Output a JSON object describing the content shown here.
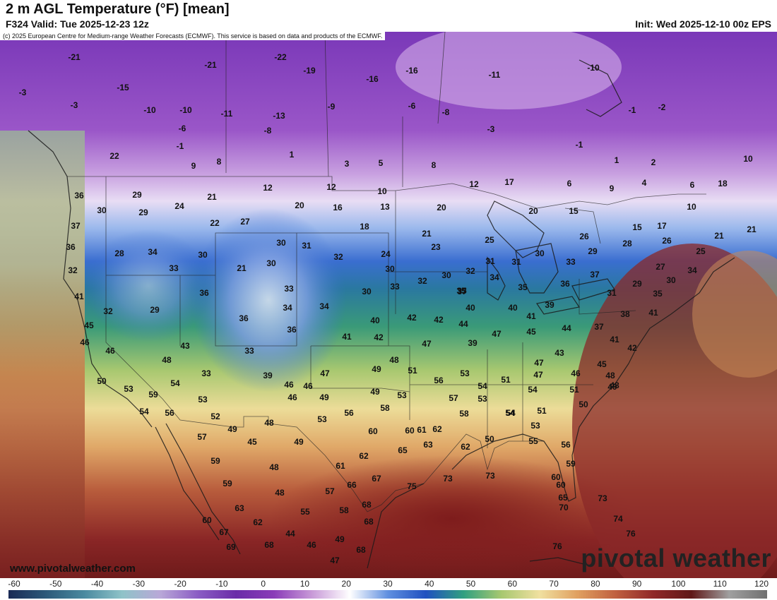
{
  "header": {
    "title": "2 m AGL Temperature (°F) [mean]",
    "valid": "F324 Valid: Tue 2025-12-23 12z",
    "init": "Init: Wed 2025-12-10 00z EPS",
    "credit": "(c) 2025 European Centre for Medium-range Weather Forecasts (ECMWF). This service is based on data and products of the ECMWF."
  },
  "footer": {
    "website": "www.pivotalweather.com",
    "brand": "pivotal weather"
  },
  "colorbar": {
    "ticks": [
      "-60",
      "-50",
      "-40",
      "-30",
      "-20",
      "-10",
      "0",
      "10",
      "20",
      "30",
      "40",
      "50",
      "60",
      "70",
      "80",
      "90",
      "100",
      "110",
      "120"
    ],
    "stops": [
      "#1a2a55",
      "#2c5a7a",
      "#4a8aa0",
      "#8fc3c8",
      "#b9a8d8",
      "#8a5cc4",
      "#6a2ca8",
      "#8a3cb8",
      "#c89ad8",
      "#ffffff",
      "#6090e0",
      "#2050c0",
      "#30a080",
      "#a8c870",
      "#f0e0a0",
      "#e0a060",
      "#c06040",
      "#902828",
      "#601818",
      "#a0a0a0",
      "#707070"
    ]
  },
  "map_labels": [
    {
      "t": "-21",
      "v": -21
    },
    {
      "t": "-22",
      "v": -22
    },
    {
      "t": "-21",
      "v": -21
    },
    {
      "t": "-19",
      "v": -19
    },
    {
      "t": "-16",
      "v": -16
    },
    {
      "t": "-16",
      "v": -16
    },
    {
      "t": "-11",
      "v": -11
    },
    {
      "t": "-10",
      "v": -10
    },
    {
      "t": "-15",
      "v": -15
    },
    {
      "t": "-3",
      "v": -3
    },
    {
      "t": "-3",
      "v": -3
    },
    {
      "t": "-10",
      "v": -10
    },
    {
      "t": "-10",
      "v": -10
    },
    {
      "t": "-11",
      "v": -11
    },
    {
      "t": "-13",
      "v": -13
    },
    {
      "t": "-9",
      "v": -9
    },
    {
      "t": "-6",
      "v": -6
    },
    {
      "t": "-8",
      "v": -8
    },
    {
      "t": "-1",
      "v": -1
    },
    {
      "t": "-2",
      "v": -2
    },
    {
      "t": "-6",
      "v": -6
    },
    {
      "t": "-8",
      "v": -8
    },
    {
      "t": "-3",
      "v": -3
    },
    {
      "t": "-1",
      "v": -1
    },
    {
      "t": "-1",
      "v": -1
    },
    {
      "t": "1",
      "v": 1
    },
    {
      "t": "1",
      "v": 1
    },
    {
      "t": "2",
      "v": 2
    },
    {
      "t": "22",
      "v": 22
    },
    {
      "t": "9",
      "v": 9
    },
    {
      "t": "8",
      "v": 8
    },
    {
      "t": "3",
      "v": 3
    },
    {
      "t": "5",
      "v": 5
    },
    {
      "t": "8",
      "v": 8
    },
    {
      "t": "10",
      "v": 10
    },
    {
      "t": "12",
      "v": 12
    },
    {
      "t": "12",
      "v": 12
    },
    {
      "t": "10",
      "v": 10
    },
    {
      "t": "12",
      "v": 12
    },
    {
      "t": "17",
      "v": 17
    },
    {
      "t": "6",
      "v": 6
    },
    {
      "t": "9",
      "v": 9
    },
    {
      "t": "4",
      "v": 4
    },
    {
      "t": "6",
      "v": 6
    },
    {
      "t": "18",
      "v": 18
    },
    {
      "t": "36",
      "v": 36
    },
    {
      "t": "29",
      "v": 29
    },
    {
      "t": "21",
      "v": 21
    },
    {
      "t": "24",
      "v": 24
    },
    {
      "t": "20",
      "v": 20
    },
    {
      "t": "16",
      "v": 16
    },
    {
      "t": "13",
      "v": 13
    },
    {
      "t": "20",
      "v": 20
    },
    {
      "t": "20",
      "v": 20
    },
    {
      "t": "15",
      "v": 15
    },
    {
      "t": "10",
      "v": 10
    },
    {
      "t": "30",
      "v": 30
    },
    {
      "t": "29",
      "v": 29
    },
    {
      "t": "22",
      "v": 22
    },
    {
      "t": "27",
      "v": 27
    },
    {
      "t": "18",
      "v": 18
    },
    {
      "t": "21",
      "v": 21
    },
    {
      "t": "15",
      "v": 15
    },
    {
      "t": "17",
      "v": 17
    },
    {
      "t": "21",
      "v": 21
    },
    {
      "t": "21",
      "v": 21
    },
    {
      "t": "37",
      "v": 37
    },
    {
      "t": "36",
      "v": 36
    },
    {
      "t": "28",
      "v": 28
    },
    {
      "t": "34",
      "v": 34
    },
    {
      "t": "30",
      "v": 30
    },
    {
      "t": "30",
      "v": 30
    },
    {
      "t": "31",
      "v": 31
    },
    {
      "t": "32",
      "v": 32
    },
    {
      "t": "24",
      "v": 24
    },
    {
      "t": "23",
      "v": 23
    },
    {
      "t": "25",
      "v": 25
    },
    {
      "t": "26",
      "v": 26
    },
    {
      "t": "29",
      "v": 29
    },
    {
      "t": "28",
      "v": 28
    },
    {
      "t": "26",
      "v": 26
    },
    {
      "t": "25",
      "v": 25
    },
    {
      "t": "32",
      "v": 32
    },
    {
      "t": "33",
      "v": 33
    },
    {
      "t": "21",
      "v": 21
    },
    {
      "t": "30",
      "v": 30
    },
    {
      "t": "30",
      "v": 30
    },
    {
      "t": "30",
      "v": 30
    },
    {
      "t": "32",
      "v": 32
    },
    {
      "t": "31",
      "v": 31
    },
    {
      "t": "31",
      "v": 31
    },
    {
      "t": "30",
      "v": 30
    },
    {
      "t": "33",
      "v": 33
    },
    {
      "t": "27",
      "v": 27
    },
    {
      "t": "41",
      "v": 41
    },
    {
      "t": "36",
      "v": 36
    },
    {
      "t": "33",
      "v": 33
    },
    {
      "t": "34",
      "v": 34
    },
    {
      "t": "33",
      "v": 33
    },
    {
      "t": "32",
      "v": 32
    },
    {
      "t": "35",
      "v": 35
    },
    {
      "t": "34",
      "v": 34
    },
    {
      "t": "30",
      "v": 30
    },
    {
      "t": "37",
      "v": 37
    },
    {
      "t": "29",
      "v": 29
    },
    {
      "t": "30",
      "v": 30
    },
    {
      "t": "34",
      "v": 34
    },
    {
      "t": "32",
      "v": 32
    },
    {
      "t": "29",
      "v": 29
    },
    {
      "t": "34",
      "v": 34
    },
    {
      "t": "37",
      "v": 37
    },
    {
      "t": "35",
      "v": 35
    },
    {
      "t": "35",
      "v": 35
    },
    {
      "t": "36",
      "v": 36
    },
    {
      "t": "31",
      "v": 31
    },
    {
      "t": "35",
      "v": 35
    },
    {
      "t": "45",
      "v": 45
    },
    {
      "t": "36",
      "v": 36
    },
    {
      "t": "40",
      "v": 40
    },
    {
      "t": "42",
      "v": 42
    },
    {
      "t": "42",
      "v": 42
    },
    {
      "t": "40",
      "v": 40
    },
    {
      "t": "40",
      "v": 40
    },
    {
      "t": "39",
      "v": 39
    },
    {
      "t": "41",
      "v": 41
    },
    {
      "t": "38",
      "v": 38
    },
    {
      "t": "41",
      "v": 41
    },
    {
      "t": "46",
      "v": 46
    },
    {
      "t": "36",
      "v": 36
    },
    {
      "t": "41",
      "v": 41
    },
    {
      "t": "42",
      "v": 42
    },
    {
      "t": "44",
      "v": 44
    },
    {
      "t": "47",
      "v": 47
    },
    {
      "t": "45",
      "v": 45
    },
    {
      "t": "44",
      "v": 44
    },
    {
      "t": "37",
      "v": 37
    },
    {
      "t": "41",
      "v": 41
    },
    {
      "t": "42",
      "v": 42
    },
    {
      "t": "46",
      "v": 46
    },
    {
      "t": "43",
      "v": 43
    },
    {
      "t": "33",
      "v": 33
    },
    {
      "t": "47",
      "v": 47
    },
    {
      "t": "49",
      "v": 49
    },
    {
      "t": "39",
      "v": 39
    },
    {
      "t": "43",
      "v": 43
    },
    {
      "t": "47",
      "v": 47
    },
    {
      "t": "48",
      "v": 48
    },
    {
      "t": "46",
      "v": 46
    },
    {
      "t": "33",
      "v": 33
    },
    {
      "t": "39",
      "v": 39
    },
    {
      "t": "47",
      "v": 47
    },
    {
      "t": "49",
      "v": 49
    },
    {
      "t": "48",
      "v": 48
    },
    {
      "t": "51",
      "v": 51
    },
    {
      "t": "53",
      "v": 53
    },
    {
      "t": "51",
      "v": 51
    },
    {
      "t": "47",
      "v": 47
    },
    {
      "t": "46",
      "v": 46
    },
    {
      "t": "45",
      "v": 45
    },
    {
      "t": "50",
      "v": 50
    },
    {
      "t": "53",
      "v": 53
    },
    {
      "t": "59",
      "v": 59
    },
    {
      "t": "54",
      "v": 54
    },
    {
      "t": "46",
      "v": 46
    },
    {
      "t": "49",
      "v": 49
    },
    {
      "t": "53",
      "v": 53
    },
    {
      "t": "56",
      "v": 56
    },
    {
      "t": "54",
      "v": 54
    },
    {
      "t": "54",
      "v": 54
    },
    {
      "t": "51",
      "v": 51
    },
    {
      "t": "49",
      "v": 49
    },
    {
      "t": "48",
      "v": 48
    },
    {
      "t": "48",
      "v": 48
    },
    {
      "t": "54",
      "v": 54
    },
    {
      "t": "56",
      "v": 56
    },
    {
      "t": "53",
      "v": 53
    },
    {
      "t": "46",
      "v": 46
    },
    {
      "t": "57",
      "v": 57
    },
    {
      "t": "53",
      "v": 53
    },
    {
      "t": "54",
      "v": 54
    },
    {
      "t": "50",
      "v": 50
    },
    {
      "t": "52",
      "v": 52
    },
    {
      "t": "48",
      "v": 48
    },
    {
      "t": "49",
      "v": 49
    },
    {
      "t": "53",
      "v": 53
    },
    {
      "t": "56",
      "v": 56
    },
    {
      "t": "58",
      "v": 58
    },
    {
      "t": "60",
      "v": 60
    },
    {
      "t": "58",
      "v": 58
    },
    {
      "t": "54",
      "v": 54
    },
    {
      "t": "51",
      "v": 51
    },
    {
      "t": "53",
      "v": 53
    },
    {
      "t": "57",
      "v": 57
    },
    {
      "t": "45",
      "v": 45
    },
    {
      "t": "49",
      "v": 49
    },
    {
      "t": "60",
      "v": 60
    },
    {
      "t": "62",
      "v": 62
    },
    {
      "t": "61",
      "v": 61
    },
    {
      "t": "50",
      "v": 50
    },
    {
      "t": "55",
      "v": 55
    },
    {
      "t": "56",
      "v": 56
    },
    {
      "t": "59",
      "v": 59
    },
    {
      "t": "48",
      "v": 48
    },
    {
      "t": "62",
      "v": 62
    },
    {
      "t": "65",
      "v": 65
    },
    {
      "t": "63",
      "v": 63
    },
    {
      "t": "62",
      "v": 62
    },
    {
      "t": "59",
      "v": 59
    },
    {
      "t": "59",
      "v": 59
    },
    {
      "t": "61",
      "v": 61
    },
    {
      "t": "66",
      "v": 66
    },
    {
      "t": "67",
      "v": 67
    },
    {
      "t": "75",
      "v": 75
    },
    {
      "t": "73",
      "v": 73
    },
    {
      "t": "73",
      "v": 73
    },
    {
      "t": "60",
      "v": 60
    },
    {
      "t": "60",
      "v": 60
    },
    {
      "t": "48",
      "v": 48
    },
    {
      "t": "57",
      "v": 57
    },
    {
      "t": "68",
      "v": 68
    },
    {
      "t": "65",
      "v": 65
    },
    {
      "t": "73",
      "v": 73
    },
    {
      "t": "63",
      "v": 63
    },
    {
      "t": "55",
      "v": 55
    },
    {
      "t": "58",
      "v": 58
    },
    {
      "t": "70",
      "v": 70
    },
    {
      "t": "60",
      "v": 60
    },
    {
      "t": "62",
      "v": 62
    },
    {
      "t": "68",
      "v": 68
    },
    {
      "t": "74",
      "v": 74
    },
    {
      "t": "67",
      "v": 67
    },
    {
      "t": "44",
      "v": 44
    },
    {
      "t": "49",
      "v": 49
    },
    {
      "t": "76",
      "v": 76
    },
    {
      "t": "69",
      "v": 69
    },
    {
      "t": "68",
      "v": 68
    },
    {
      "t": "46",
      "v": 46
    },
    {
      "t": "68",
      "v": 68
    },
    {
      "t": "76",
      "v": 76
    },
    {
      "t": "47",
      "v": 47
    }
  ]
}
